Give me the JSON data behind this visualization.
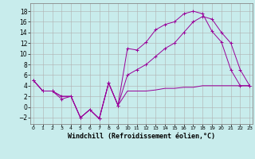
{
  "background_color": "#c8ecec",
  "grid_color": "#b0b0b0",
  "line_color": "#990099",
  "xlabel": "Windchill (Refroidissement éolien,°C)",
  "xlabel_fontsize": 6.0,
  "yticks": [
    -2,
    0,
    2,
    4,
    6,
    8,
    10,
    12,
    14,
    16,
    18
  ],
  "xticks": [
    0,
    1,
    2,
    3,
    4,
    5,
    6,
    7,
    8,
    9,
    10,
    11,
    12,
    13,
    14,
    15,
    16,
    17,
    18,
    19,
    20,
    21,
    22,
    23
  ],
  "ylim": [
    -3.2,
    19.5
  ],
  "xlim": [
    -0.3,
    23.3
  ],
  "line1_x": [
    0,
    1,
    2,
    3,
    4,
    5,
    6,
    7,
    8,
    9,
    10,
    11,
    12,
    13,
    14,
    15,
    16,
    17,
    18,
    19,
    20,
    21,
    22,
    23
  ],
  "line1_y": [
    5,
    3,
    3,
    2,
    2,
    -2,
    -0.5,
    -2.2,
    4.5,
    0.3,
    11,
    10.7,
    12.2,
    14.5,
    15.5,
    16,
    17.5,
    18,
    17.5,
    14.2,
    12.2,
    7,
    4,
    4
  ],
  "line2_x": [
    0,
    1,
    2,
    3,
    4,
    5,
    6,
    7,
    8,
    9,
    10,
    11,
    12,
    13,
    14,
    15,
    16,
    17,
    18,
    19,
    20,
    21,
    22,
    23
  ],
  "line2_y": [
    5,
    3,
    3,
    2,
    2,
    -2,
    -0.5,
    -2.2,
    4.5,
    0.3,
    3.0,
    3.0,
    3.0,
    3.2,
    3.5,
    3.5,
    3.7,
    3.7,
    4.0,
    4.0,
    4.0,
    4.0,
    4.0,
    4.0
  ],
  "line3_x": [
    0,
    1,
    2,
    3,
    4,
    5,
    6,
    7,
    8,
    9,
    10,
    11,
    12,
    13,
    14,
    15,
    16,
    17,
    18,
    19,
    20,
    21,
    22,
    23
  ],
  "line3_y": [
    5,
    3,
    3,
    1.5,
    2,
    -2,
    -0.5,
    -2.2,
    4.5,
    0.3,
    6,
    7,
    8,
    9.5,
    11,
    12,
    14,
    16,
    17,
    16.5,
    14,
    12,
    7,
    4
  ]
}
